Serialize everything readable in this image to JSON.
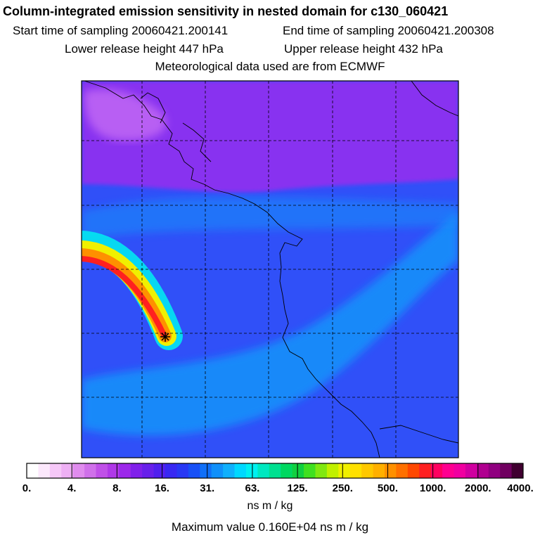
{
  "header": {
    "title": "Column-integrated emission sensitivity in nested domain for c130_060421",
    "start_label": "Start time of sampling 20060421.200141",
    "end_label": "End time of sampling 20060421.200308",
    "lower_label": "Lower release height  447 hPa",
    "upper_label": "Upper release height  432 hPa",
    "met_label": "Meteorological data used are from ECMWF"
  },
  "colorbar": {
    "labels": [
      "0.",
      "4.",
      "8.",
      "16.",
      "31.",
      "63.",
      "125.",
      "250.",
      "500.",
      "1000.",
      "2000.",
      "4000."
    ],
    "colors": [
      "#ffffff",
      "#fce8fc",
      "#f6c8f8",
      "#eeb0f4",
      "#e08cee",
      "#d070ea",
      "#c050e8",
      "#b038e8",
      "#9c28ea",
      "#8020ea",
      "#6820ea",
      "#5020ee",
      "#3828f2",
      "#2838f4",
      "#1850f6",
      "#1070f8",
      "#1090fa",
      "#10b0fc",
      "#00d8ff",
      "#00f0f0",
      "#00e8c0",
      "#00e090",
      "#00d860",
      "#10d040",
      "#40e020",
      "#80e810",
      "#c0f000",
      "#f0f000",
      "#ffe000",
      "#ffc800",
      "#ffb000",
      "#ff9000",
      "#ff7000",
      "#ff4800",
      "#ff2020",
      "#ff0060",
      "#ff0090",
      "#f000a0",
      "#d000a0",
      "#b00090",
      "#900080",
      "#700060",
      "#400030"
    ],
    "units": "ns m / kg"
  },
  "footer": {
    "max_value": "Maximum value  0.160E+04 ns m / kg"
  },
  "map": {
    "background_color": "#3050f8",
    "north_band_color": "#8830f0",
    "north_band_light": "#c86ef4",
    "light_band_color": "#1890fa",
    "plume_colors": [
      "#00f0f0",
      "#f0f000",
      "#ff9000",
      "#ff2020"
    ],
    "release_marker": "release-point-star"
  }
}
